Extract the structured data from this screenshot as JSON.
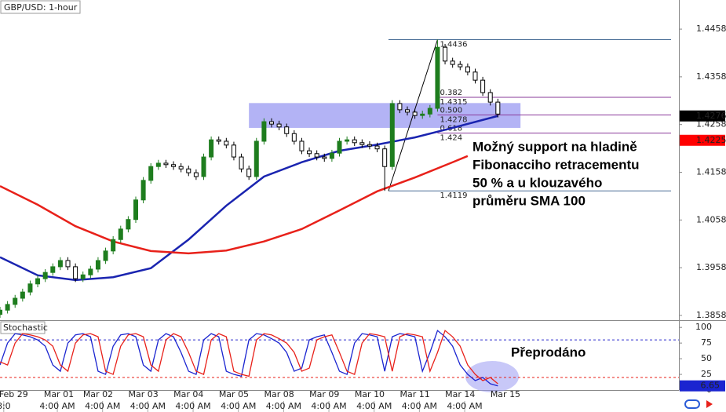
{
  "chart_data": {
    "type": "candlestick",
    "title": "GBP/USD: 1-hour",
    "xlim": [
      0,
      90
    ],
    "ylim": [
      1.3848,
      1.4519
    ],
    "yticks": [
      1.3858,
      1.3958,
      1.4058,
      1.4158,
      1.4258,
      1.4358,
      1.4458
    ],
    "up_color": "#1e7d1e",
    "down_color": "#000000",
    "candles": [
      [
        1.386,
        1.3876,
        1.3853,
        1.3869
      ],
      [
        1.3869,
        1.3888,
        1.3862,
        1.3881
      ],
      [
        1.3881,
        1.3901,
        1.3874,
        1.3894
      ],
      [
        1.3894,
        1.3914,
        1.3887,
        1.3907
      ],
      [
        1.3907,
        1.3931,
        1.39,
        1.3924
      ],
      [
        1.3924,
        1.3942,
        1.3917,
        1.3935
      ],
      [
        1.3935,
        1.3955,
        1.3928,
        1.3948
      ],
      [
        1.3948,
        1.3967,
        1.3941,
        1.396
      ],
      [
        1.396,
        1.398,
        1.3953,
        1.3973
      ],
      [
        1.3973,
        1.398,
        1.3953,
        1.396
      ],
      [
        1.396,
        1.3967,
        1.3928,
        1.3935
      ],
      [
        1.3935,
        1.395,
        1.3928,
        1.3943
      ],
      [
        1.3943,
        1.3962,
        1.3936,
        1.3955
      ],
      [
        1.3955,
        1.398,
        1.3948,
        1.3973
      ],
      [
        1.3973,
        1.4,
        1.3966,
        1.3993
      ],
      [
        1.3993,
        1.4024,
        1.3986,
        1.4017
      ],
      [
        1.4017,
        1.4046,
        1.401,
        1.4039
      ],
      [
        1.4039,
        1.4066,
        1.4032,
        1.4059
      ],
      [
        1.4059,
        1.4107,
        1.4052,
        1.41
      ],
      [
        1.41,
        1.4148,
        1.4093,
        1.4141
      ],
      [
        1.4141,
        1.4177,
        1.4134,
        1.417
      ],
      [
        1.417,
        1.4184,
        1.4163,
        1.4177
      ],
      [
        1.4177,
        1.4184,
        1.4167,
        1.4174
      ],
      [
        1.4174,
        1.4181,
        1.4163,
        1.417
      ],
      [
        1.417,
        1.4177,
        1.4158,
        1.4165
      ],
      [
        1.4165,
        1.4172,
        1.415,
        1.4157
      ],
      [
        1.4157,
        1.4164,
        1.4142,
        1.4149
      ],
      [
        1.4149,
        1.4197,
        1.4142,
        1.419
      ],
      [
        1.419,
        1.4233,
        1.4183,
        1.4226
      ],
      [
        1.4226,
        1.4233,
        1.4216,
        1.4223
      ],
      [
        1.4223,
        1.423,
        1.4208,
        1.4215
      ],
      [
        1.4215,
        1.4222,
        1.4183,
        1.419
      ],
      [
        1.419,
        1.4197,
        1.4158,
        1.4165
      ],
      [
        1.4165,
        1.4172,
        1.4142,
        1.4149
      ],
      [
        1.4149,
        1.423,
        1.4142,
        1.4223
      ],
      [
        1.4223,
        1.4271,
        1.4216,
        1.4264
      ],
      [
        1.4264,
        1.4271,
        1.4252,
        1.4259
      ],
      [
        1.4259,
        1.4266,
        1.4246,
        1.4253
      ],
      [
        1.4253,
        1.426,
        1.4232,
        1.4239
      ],
      [
        1.4239,
        1.4246,
        1.4216,
        1.4223
      ],
      [
        1.4223,
        1.423,
        1.4196,
        1.4203
      ],
      [
        1.4203,
        1.421,
        1.419,
        1.4197
      ],
      [
        1.4197,
        1.4204,
        1.4183,
        1.419
      ],
      [
        1.419,
        1.4197,
        1.418,
        1.4187
      ],
      [
        1.4187,
        1.4205,
        1.418,
        1.4198
      ],
      [
        1.4198,
        1.423,
        1.4191,
        1.4223
      ],
      [
        1.4223,
        1.4233,
        1.4216,
        1.4226
      ],
      [
        1.4226,
        1.4233,
        1.4213,
        1.422
      ],
      [
        1.422,
        1.4227,
        1.4209,
        1.4216
      ],
      [
        1.4216,
        1.4223,
        1.4206,
        1.4213
      ],
      [
        1.4213,
        1.422,
        1.42,
        1.4207
      ],
      [
        1.4207,
        1.4214,
        1.4119,
        1.417
      ],
      [
        1.417,
        1.4309,
        1.4163,
        1.4302
      ],
      [
        1.4302,
        1.4309,
        1.4282,
        1.4289
      ],
      [
        1.4289,
        1.4296,
        1.4277,
        1.4284
      ],
      [
        1.4284,
        1.4291,
        1.427,
        1.4277
      ],
      [
        1.4277,
        1.4287,
        1.427,
        1.428
      ],
      [
        1.428,
        1.4299,
        1.4273,
        1.4292
      ],
      [
        1.4292,
        1.4436,
        1.4285,
        1.442
      ],
      [
        1.442,
        1.4427,
        1.4384,
        1.4391
      ],
      [
        1.4391,
        1.4398,
        1.4377,
        1.4384
      ],
      [
        1.4384,
        1.4391,
        1.4372,
        1.4379
      ],
      [
        1.4379,
        1.4386,
        1.4361,
        1.4368
      ],
      [
        1.4368,
        1.4375,
        1.4344,
        1.4351
      ],
      [
        1.4351,
        1.4358,
        1.4318,
        1.4325
      ],
      [
        1.4325,
        1.4332,
        1.4298,
        1.4305
      ],
      [
        1.4305,
        1.4312,
        1.4273,
        1.428
      ]
    ],
    "sma": [
      {
        "color": "#1a24b0",
        "x": [
          0,
          5,
          10,
          15,
          20,
          25,
          30,
          35,
          40,
          45,
          50,
          55,
          60,
          66
        ],
        "values": [
          1.398,
          1.3942,
          1.3932,
          1.3938,
          1.3957,
          1.4017,
          1.4088,
          1.4149,
          1.4179,
          1.4203,
          1.4216,
          1.4231,
          1.4251,
          1.4276
        ]
      },
      {
        "color": "#e8211a",
        "x": [
          0,
          5,
          10,
          15,
          20,
          25,
          30,
          35,
          40,
          45,
          50,
          55,
          60,
          62
        ],
        "values": [
          1.4129,
          1.409,
          1.4045,
          1.4013,
          1.3993,
          1.3988,
          1.3994,
          1.4013,
          1.4039,
          1.4078,
          1.4118,
          1.4147,
          1.4179,
          1.4192
        ]
      }
    ],
    "price_tags": [
      {
        "value": 1.4276,
        "color": "#000000"
      },
      {
        "value": 1.4225,
        "color": "#ff0000"
      }
    ],
    "zone": {
      "x": [
        33,
        69
      ],
      "y": [
        1.4251,
        1.4303
      ],
      "color": "#9a9af2"
    },
    "fib": {
      "anchor_x": [
        51.5,
        58
      ],
      "ends": [
        1.4119,
        1.4436
      ],
      "end_color": "#4a6e96",
      "level_color": "#8a3a9a",
      "levels": [
        {
          "ratio": 0.382,
          "price": 1.4315
        },
        {
          "ratio": {
            "value": 0.5,
            "label": "0.500"
          },
          "price": 1.4278
        },
        {
          "ratio": 0.618,
          "price": 1.424
        }
      ]
    },
    "annotation": [
      "Možný support na hladině",
      "Fibonacciho retracementu",
      "50 % a u klouzavého",
      "průměru SMA 100"
    ],
    "stochastic": {
      "title": "Stochastic",
      "ylim": [
        0,
        109
      ],
      "yticks": [
        0,
        25,
        50,
        75,
        100
      ],
      "levels": [
        20,
        80
      ],
      "annotation": "Přeprodáno",
      "series": [
        {
          "color": "#1a24d0",
          "values": [
            40,
            75,
            90,
            88,
            85,
            80,
            70,
            40,
            30,
            75,
            88,
            90,
            85,
            30,
            25,
            70,
            88,
            90,
            85,
            40,
            30,
            80,
            90,
            85,
            60,
            30,
            25,
            80,
            90,
            85,
            30,
            25,
            22,
            80,
            90,
            88,
            82,
            75,
            60,
            30,
            35,
            80,
            85,
            88,
            60,
            30,
            25,
            75,
            90,
            88,
            85,
            30,
            85,
            90,
            88,
            85,
            30,
            60,
            95,
            85,
            70,
            40,
            25,
            15,
            20,
            10,
            6.65
          ]
        },
        {
          "color": "#e8211a",
          "values": [
            45,
            40,
            75,
            90,
            88,
            85,
            80,
            70,
            40,
            30,
            75,
            88,
            90,
            85,
            30,
            25,
            70,
            88,
            90,
            85,
            40,
            30,
            80,
            90,
            85,
            60,
            30,
            25,
            80,
            90,
            85,
            30,
            25,
            22,
            80,
            90,
            88,
            82,
            75,
            60,
            30,
            35,
            80,
            85,
            88,
            60,
            30,
            25,
            75,
            90,
            88,
            85,
            30,
            85,
            90,
            88,
            85,
            30,
            60,
            95,
            85,
            70,
            40,
            25,
            15,
            20,
            10
          ]
        }
      ]
    },
    "xticks": [
      {
        "value": 0.5,
        "label": "8:0"
      },
      {
        "value": 7.6,
        "label": "4:00 AM"
      },
      {
        "value": 13.6,
        "label": "4:00 AM"
      },
      {
        "value": 19.6,
        "label": "4:00 AM"
      },
      {
        "value": 25.6,
        "label": "4:00 AM"
      },
      {
        "value": 31.6,
        "label": "4:00 AM"
      },
      {
        "value": 37.6,
        "label": "4:00 AM"
      },
      {
        "value": 43.6,
        "label": "4:00 AM"
      },
      {
        "value": 49.6,
        "label": "4:00 AM"
      },
      {
        "value": 55.6,
        "label": "4:00 AM"
      },
      {
        "value": 61.6,
        "label": "4:00 AM"
      }
    ],
    "date_ticks": [
      {
        "value": 1.8,
        "label": "Feb 29"
      },
      {
        "value": 7.8,
        "label": "Mar 01"
      },
      {
        "value": 13.0,
        "label": "Mar 02"
      },
      {
        "value": 19.0,
        "label": "Mar 03"
      },
      {
        "value": 25.0,
        "label": "Mar 04"
      },
      {
        "value": 31.0,
        "label": "Mar 05"
      },
      {
        "value": 37.0,
        "label": "Mar 08"
      },
      {
        "value": 43.0,
        "label": "Mar 09"
      },
      {
        "value": 49.0,
        "label": "Mar 10"
      },
      {
        "value": 55.0,
        "label": "Mar 11"
      },
      {
        "value": 61.0,
        "label": "Mar 14"
      },
      {
        "value": 67.0,
        "label": "Mar 15"
      }
    ]
  }
}
